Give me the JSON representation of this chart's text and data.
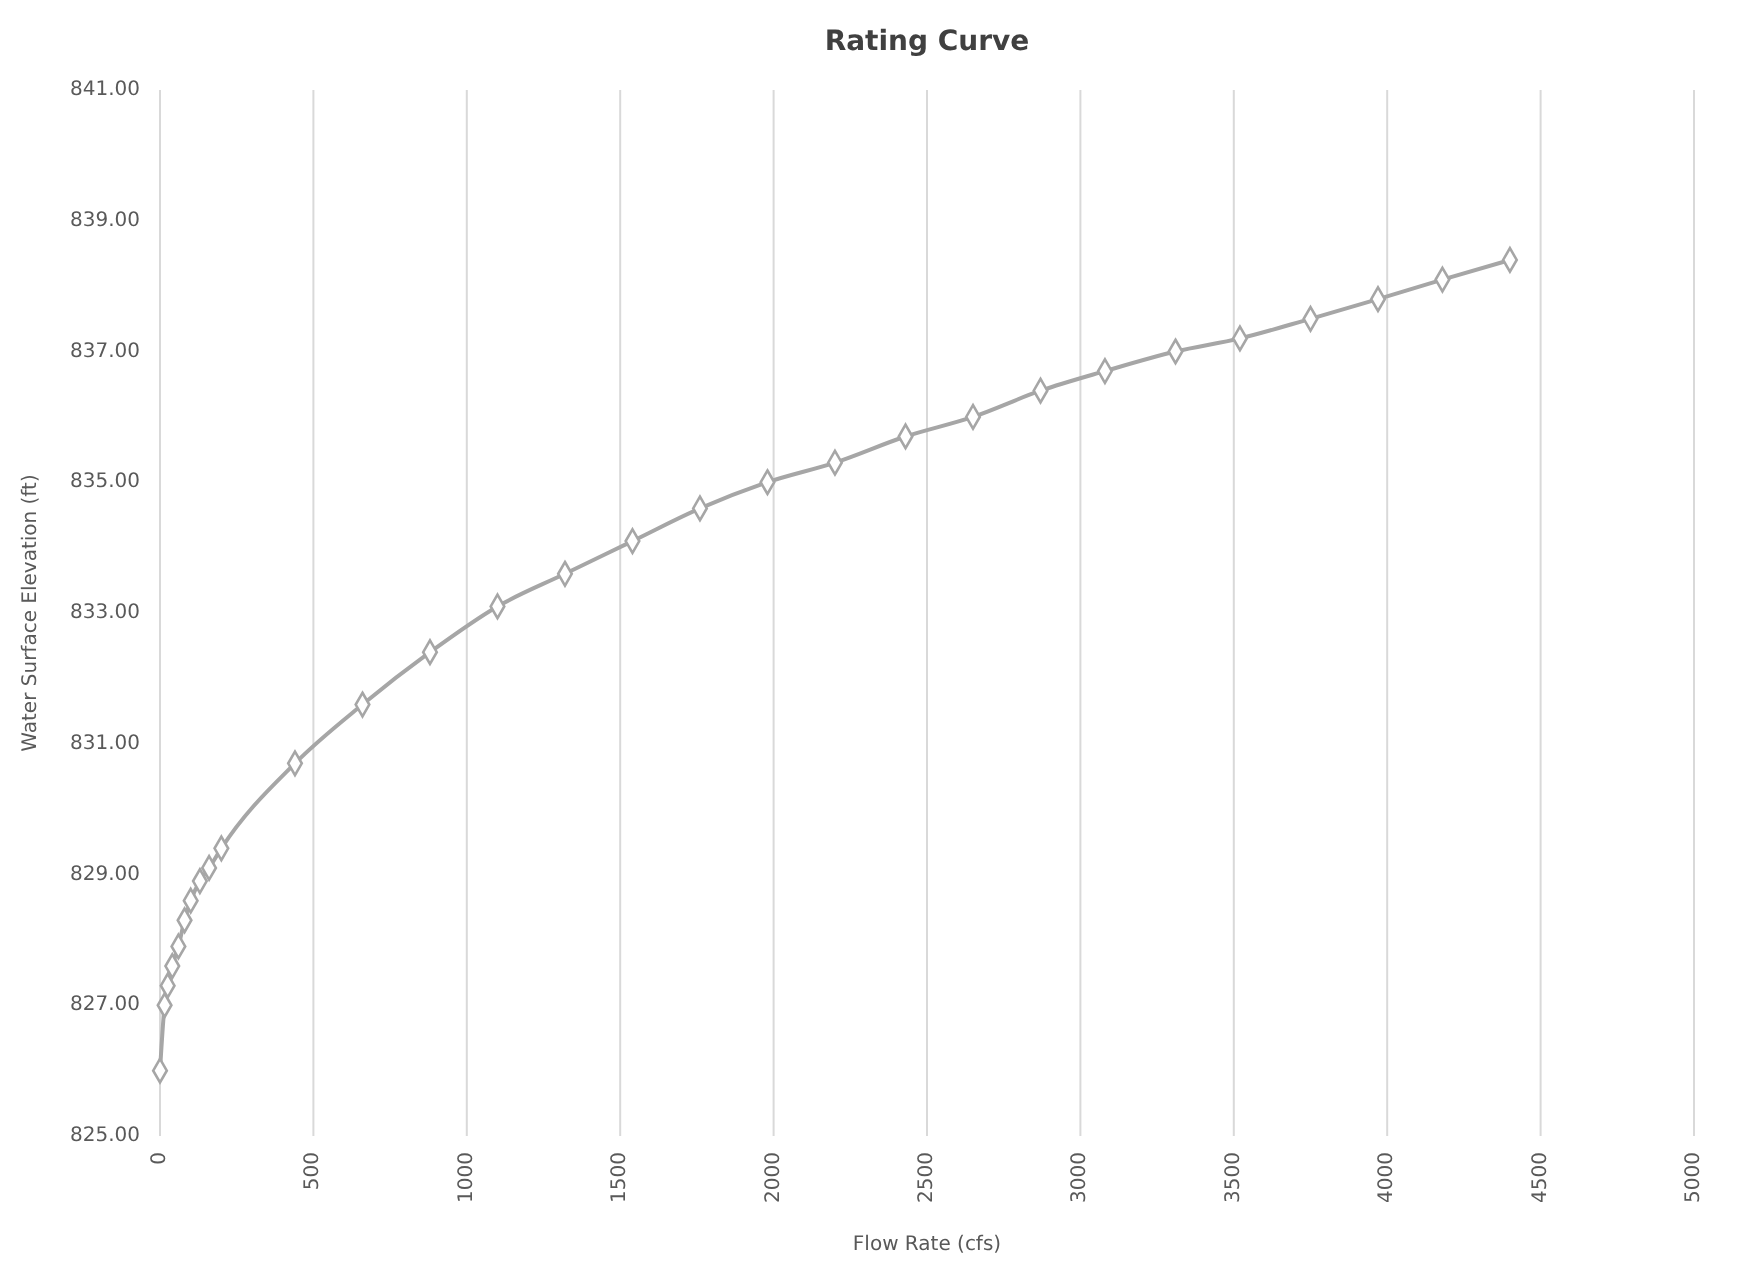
{
  "chart_data": {
    "type": "line",
    "title": "Rating Curve",
    "xlabel": "Flow Rate (cfs)",
    "ylabel": "Water Surface Elevation (ft)",
    "x": [
      0,
      15,
      25,
      40,
      60,
      80,
      100,
      130,
      160,
      200,
      440,
      660,
      880,
      1100,
      1320,
      1540,
      1760,
      1980,
      2200,
      2430,
      2650,
      2870,
      3080,
      3310,
      3520,
      3750,
      3970,
      4180,
      4400
    ],
    "series": [
      {
        "color": "#a6a6a6",
        "values": [
          826.0,
          827.0,
          827.3,
          827.6,
          827.9,
          828.3,
          828.6,
          828.9,
          829.1,
          829.4,
          830.7,
          831.6,
          832.4,
          833.1,
          833.6,
          834.1,
          834.6,
          835.0,
          835.3,
          835.7,
          836.0,
          836.4,
          836.7,
          837.0,
          837.2,
          837.5,
          837.8,
          838.1,
          838.4
        ]
      }
    ],
    "xlim": [
      0,
      5000
    ],
    "xticks": [
      0,
      500,
      1000,
      1500,
      2000,
      2500,
      3000,
      3500,
      4000,
      4500,
      5000
    ],
    "ylim": [
      825,
      841
    ],
    "yticks": [
      {
        "value": 825,
        "label": "825.00"
      },
      {
        "value": 827,
        "label": "827.00"
      },
      {
        "value": 829,
        "label": "829.00"
      },
      {
        "value": 831,
        "label": "831.00"
      },
      {
        "value": 833,
        "label": "833.00"
      },
      {
        "value": 835,
        "label": "835.00"
      },
      {
        "value": 837,
        "label": "837.00"
      },
      {
        "value": 839,
        "label": "839.00"
      },
      {
        "value": 841,
        "label": "841.00"
      }
    ],
    "grid": "x",
    "marker": "diamond",
    "line_style": "solid"
  }
}
